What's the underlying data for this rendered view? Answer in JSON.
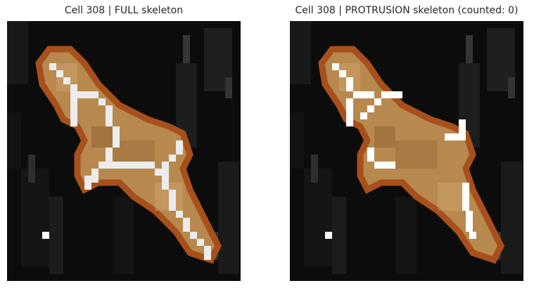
{
  "figure": {
    "panels": [
      {
        "id": "full",
        "title": "Cell 308 | FULL skeleton"
      },
      {
        "id": "protrusion",
        "title": "Cell 308 | PROTRUSION skeleton (counted: 0)"
      }
    ]
  },
  "colors": {
    "page_background": "#ffffff",
    "title_text": "#262626",
    "image_background": "#0c0c0c",
    "cell_outline": "#a8501c",
    "cell_fill": "#b8894e",
    "skeleton": "#ececec",
    "marker": "#ffffff"
  }
}
